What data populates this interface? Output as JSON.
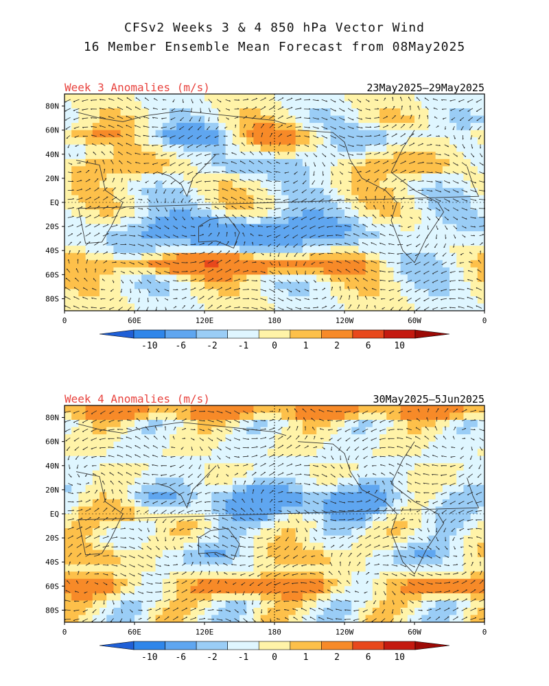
{
  "header": {
    "title_line1": "CFSv2 Weeks 3 & 4 850 hPa Vector Wind",
    "title_line2": "16 Member Ensemble Mean Forecast from 08May2025"
  },
  "panels": [
    {
      "label": "Week 3 Anomalies (m/s)",
      "dates": "23May2025–29May2025",
      "pattern": 1
    },
    {
      "label": "Week 4 Anomalies (m/s)",
      "dates": "30May2025–5Jun2025",
      "pattern": 2
    }
  ],
  "axes": {
    "lat_labels": [
      "80N",
      "60N",
      "40N",
      "20N",
      "EQ",
      "20S",
      "40S",
      "60S",
      "80S"
    ],
    "lat_values": [
      80,
      60,
      40,
      20,
      0,
      -20,
      -40,
      -60,
      -80
    ],
    "lon_labels": [
      "0",
      "60E",
      "120E",
      "180",
      "120W",
      "60W",
      "0"
    ],
    "lon_values": [
      0,
      60,
      120,
      180,
      240,
      300,
      360
    ]
  },
  "colorbar": {
    "labels": [
      "-10",
      "-6",
      "-2",
      "-1",
      "0",
      "1",
      "2",
      "6",
      "10"
    ],
    "colors": [
      "#1f5fd6",
      "#2f86ea",
      "#5fa6f0",
      "#9acdf6",
      "#dff6ff",
      "#fff3a8",
      "#fdc04a",
      "#f78a28",
      "#e8481c",
      "#c41a10",
      "#9c0a06"
    ]
  }
}
